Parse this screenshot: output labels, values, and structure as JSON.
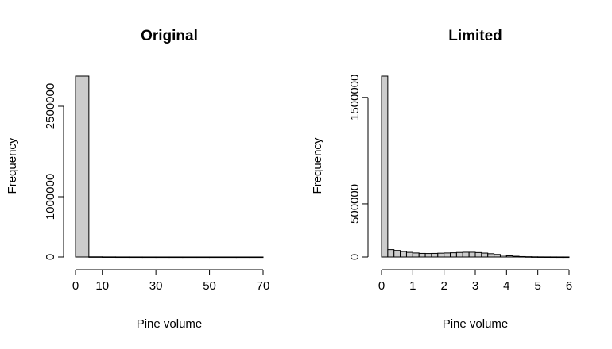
{
  "chart_data": [
    {
      "type": "histogram",
      "title": "Original",
      "xlabel": "Pine volume",
      "ylabel": "Frequency",
      "xlim": [
        0,
        70
      ],
      "ylim": [
        0,
        3000000
      ],
      "x_ticks": [
        0,
        10,
        30,
        50,
        70
      ],
      "y_ticks": [
        0,
        1000000,
        2500000
      ],
      "bins": [
        {
          "x0": 0,
          "x1": 5,
          "count": 3000000
        },
        {
          "x0": 5,
          "x1": 10,
          "count": 3000
        },
        {
          "x0": 10,
          "x1": 15,
          "count": 1500
        },
        {
          "x0": 15,
          "x1": 20,
          "count": 800
        },
        {
          "x0": 20,
          "x1": 25,
          "count": 500
        },
        {
          "x0": 25,
          "x1": 30,
          "count": 300
        },
        {
          "x0": 30,
          "x1": 35,
          "count": 200
        },
        {
          "x0": 35,
          "x1": 40,
          "count": 150
        },
        {
          "x0": 40,
          "x1": 45,
          "count": 100
        },
        {
          "x0": 45,
          "x1": 50,
          "count": 80
        },
        {
          "x0": 50,
          "x1": 55,
          "count": 60
        },
        {
          "x0": 55,
          "x1": 60,
          "count": 40
        },
        {
          "x0": 60,
          "x1": 65,
          "count": 30
        },
        {
          "x0": 65,
          "x1": 70,
          "count": 20
        }
      ]
    },
    {
      "type": "histogram",
      "title": "Limited",
      "xlabel": "Pine volume",
      "ylabel": "Frequency",
      "xlim": [
        0,
        6
      ],
      "ylim": [
        0,
        1700000
      ],
      "x_ticks": [
        0,
        1,
        2,
        3,
        4,
        5,
        6
      ],
      "y_ticks": [
        0,
        500000,
        1500000
      ],
      "bins": [
        {
          "x0": 0.0,
          "x1": 0.2,
          "count": 1700000
        },
        {
          "x0": 0.2,
          "x1": 0.4,
          "count": 70000
        },
        {
          "x0": 0.4,
          "x1": 0.6,
          "count": 62000
        },
        {
          "x0": 0.6,
          "x1": 0.8,
          "count": 52000
        },
        {
          "x0": 0.8,
          "x1": 1.0,
          "count": 44000
        },
        {
          "x0": 1.0,
          "x1": 1.2,
          "count": 38000
        },
        {
          "x0": 1.2,
          "x1": 1.4,
          "count": 34000
        },
        {
          "x0": 1.4,
          "x1": 1.6,
          "count": 33000
        },
        {
          "x0": 1.6,
          "x1": 1.8,
          "count": 34000
        },
        {
          "x0": 1.8,
          "x1": 2.0,
          "count": 36000
        },
        {
          "x0": 2.0,
          "x1": 2.2,
          "count": 38000
        },
        {
          "x0": 2.2,
          "x1": 2.4,
          "count": 40000
        },
        {
          "x0": 2.4,
          "x1": 2.6,
          "count": 43000
        },
        {
          "x0": 2.6,
          "x1": 2.8,
          "count": 45000
        },
        {
          "x0": 2.8,
          "x1": 3.0,
          "count": 45000
        },
        {
          "x0": 3.0,
          "x1": 3.2,
          "count": 42000
        },
        {
          "x0": 3.2,
          "x1": 3.4,
          "count": 37000
        },
        {
          "x0": 3.4,
          "x1": 3.6,
          "count": 31000
        },
        {
          "x0": 3.6,
          "x1": 3.8,
          "count": 24000
        },
        {
          "x0": 3.8,
          "x1": 4.0,
          "count": 17000
        },
        {
          "x0": 4.0,
          "x1": 4.2,
          "count": 11000
        },
        {
          "x0": 4.2,
          "x1": 4.4,
          "count": 7000
        },
        {
          "x0": 4.4,
          "x1": 4.6,
          "count": 4000
        },
        {
          "x0": 4.6,
          "x1": 4.8,
          "count": 2500
        },
        {
          "x0": 4.8,
          "x1": 5.0,
          "count": 1500
        },
        {
          "x0": 5.0,
          "x1": 5.2,
          "count": 1000
        },
        {
          "x0": 5.2,
          "x1": 5.4,
          "count": 700
        },
        {
          "x0": 5.4,
          "x1": 5.6,
          "count": 500
        },
        {
          "x0": 5.6,
          "x1": 5.8,
          "count": 300
        },
        {
          "x0": 5.8,
          "x1": 6.0,
          "count": 200
        }
      ]
    }
  ]
}
